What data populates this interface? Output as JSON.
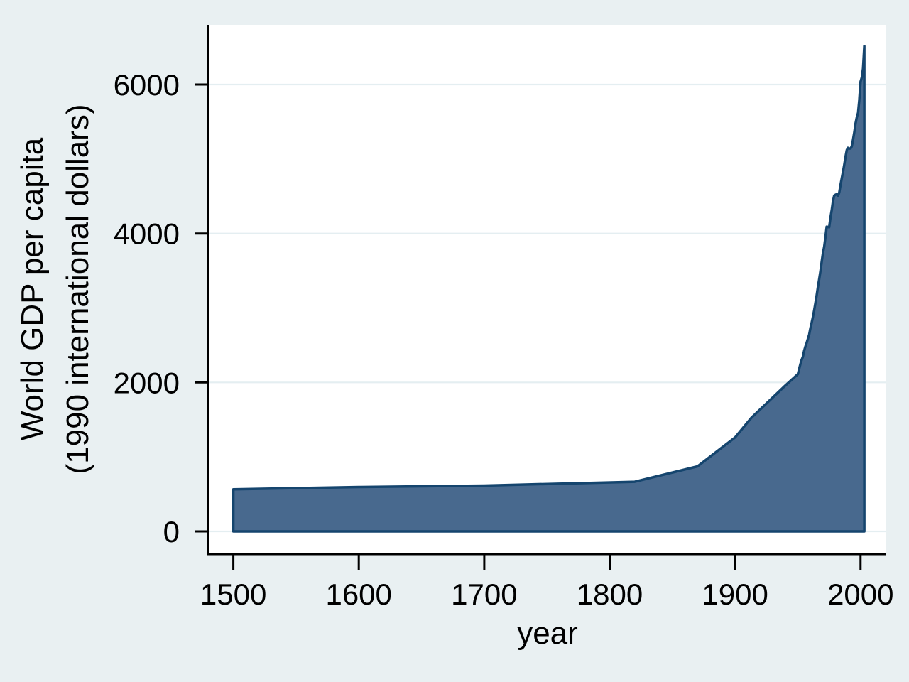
{
  "chart_data": {
    "type": "area",
    "xlabel": "year",
    "ylabel_lines": [
      "World GDP per capita",
      "(1990 international dollars)"
    ],
    "x_ticks": [
      1500,
      1600,
      1700,
      1800,
      1900,
      2000
    ],
    "y_ticks": [
      0,
      2000,
      4000,
      6000
    ],
    "xlim": [
      1481,
      2020.5
    ],
    "ylim": [
      -305,
      6801
    ],
    "grid": "horizontal gridlines at y ticks, plot background white, no legend, no title",
    "legend": "none",
    "series": [
      {
        "name": "World GDP per capita (1990 international dollars)",
        "points": [
          [
            1500,
            566
          ],
          [
            1600,
            596
          ],
          [
            1700,
            615
          ],
          [
            1820,
            667
          ],
          [
            1870,
            873
          ],
          [
            1900,
            1262
          ],
          [
            1913,
            1526
          ],
          [
            1940,
            1958
          ],
          [
            1950,
            2111
          ],
          [
            1951,
            2177
          ],
          [
            1952,
            2244
          ],
          [
            1953,
            2302
          ],
          [
            1954,
            2343
          ],
          [
            1955,
            2423
          ],
          [
            1956,
            2482
          ],
          [
            1957,
            2530
          ],
          [
            1958,
            2585
          ],
          [
            1959,
            2641
          ],
          [
            1960,
            2725
          ],
          [
            1961,
            2800
          ],
          [
            1962,
            2880
          ],
          [
            1963,
            2965
          ],
          [
            1964,
            3065
          ],
          [
            1965,
            3170
          ],
          [
            1966,
            3280
          ],
          [
            1967,
            3385
          ],
          [
            1968,
            3495
          ],
          [
            1969,
            3615
          ],
          [
            1970,
            3736
          ],
          [
            1971,
            3823
          ],
          [
            1972,
            3948
          ],
          [
            1973,
            4091
          ],
          [
            1974,
            4087
          ],
          [
            1975,
            4084
          ],
          [
            1976,
            4212
          ],
          [
            1977,
            4314
          ],
          [
            1978,
            4431
          ],
          [
            1979,
            4510
          ],
          [
            1980,
            4520
          ],
          [
            1981,
            4527
          ],
          [
            1982,
            4506
          ],
          [
            1983,
            4550
          ],
          [
            1984,
            4648
          ],
          [
            1985,
            4740
          ],
          [
            1986,
            4829
          ],
          [
            1987,
            4921
          ],
          [
            1988,
            5029
          ],
          [
            1989,
            5120
          ],
          [
            1990,
            5150
          ],
          [
            1991,
            5140
          ],
          [
            1992,
            5141
          ],
          [
            1993,
            5169
          ],
          [
            1994,
            5260
          ],
          [
            1995,
            5360
          ],
          [
            1996,
            5475
          ],
          [
            1997,
            5560
          ],
          [
            1998,
            5621
          ],
          [
            1999,
            5790
          ],
          [
            2000,
            6038
          ],
          [
            2001,
            6098
          ],
          [
            2002,
            6217
          ],
          [
            2003,
            6516
          ]
        ]
      }
    ],
    "colors": {
      "page_bg": "#e9f0f2",
      "plot_bg": "#ffffff",
      "grid": "#e4eef1",
      "area_fill": "#48698e",
      "area_stroke": "#15456e",
      "axis": "#000000",
      "text": "#000000"
    }
  }
}
